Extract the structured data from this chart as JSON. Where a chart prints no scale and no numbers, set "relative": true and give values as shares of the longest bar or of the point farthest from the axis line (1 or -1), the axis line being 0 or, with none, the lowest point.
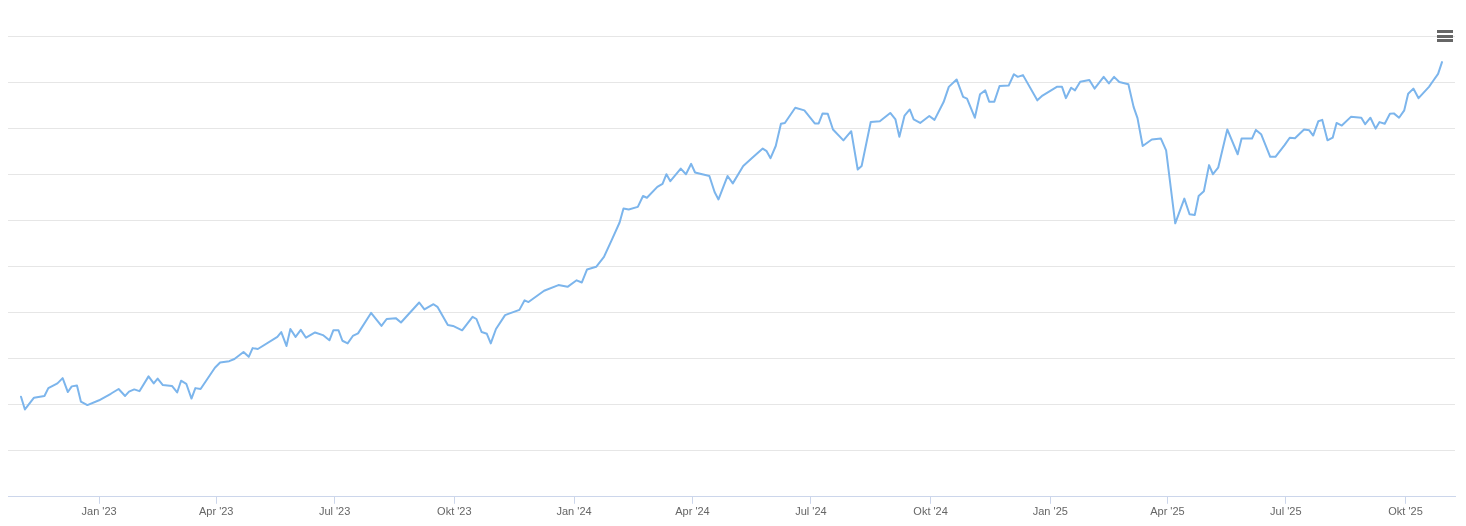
{
  "chart_data": {
    "type": "line",
    "relative": true,
    "grid": "y",
    "marker": "none",
    "line_style": "solid",
    "xlim": [
      "2022-10-23",
      "2025-11-08"
    ],
    "xticks": [
      {
        "value": "2023-01-01",
        "label": "Jan '23"
      },
      {
        "value": "2023-04-01",
        "label": "Apr '23"
      },
      {
        "value": "2023-07-01",
        "label": "Jul '23"
      },
      {
        "value": "2023-10-01",
        "label": "Okt '23"
      },
      {
        "value": "2024-01-01",
        "label": "Jan '24"
      },
      {
        "value": "2024-04-01",
        "label": "Apr '24"
      },
      {
        "value": "2024-07-01",
        "label": "Jul '24"
      },
      {
        "value": "2024-10-01",
        "label": "Okt '24"
      },
      {
        "value": "2025-01-01",
        "label": "Jan '25"
      },
      {
        "value": "2025-04-01",
        "label": "Apr '25"
      },
      {
        "value": "2025-07-01",
        "label": "Jul '25"
      },
      {
        "value": "2025-10-01",
        "label": "Okt '25"
      }
    ],
    "x": [
      "2022-11-02",
      "2022-11-05",
      "2022-11-12",
      "2022-11-20",
      "2022-11-23",
      "2022-11-30",
      "2022-12-04",
      "2022-12-08",
      "2022-12-11",
      "2022-12-15",
      "2022-12-18",
      "2022-12-23",
      "2023-01-01",
      "2023-01-10",
      "2023-01-16",
      "2023-01-21",
      "2023-01-24",
      "2023-01-28",
      "2023-02-01",
      "2023-02-08",
      "2023-02-12",
      "2023-02-15",
      "2023-02-19",
      "2023-02-26",
      "2023-03-02",
      "2023-03-05",
      "2023-03-09",
      "2023-03-13",
      "2023-03-16",
      "2023-03-20",
      "2023-03-31",
      "2023-04-04",
      "2023-04-11",
      "2023-04-15",
      "2023-04-22",
      "2023-04-26",
      "2023-04-29",
      "2023-05-03",
      "2023-05-18",
      "2023-05-21",
      "2023-05-25",
      "2023-05-28",
      "2023-06-01",
      "2023-06-05",
      "2023-06-09",
      "2023-06-16",
      "2023-06-22",
      "2023-06-27",
      "2023-06-30",
      "2023-07-04",
      "2023-07-07",
      "2023-07-11",
      "2023-07-15",
      "2023-07-19",
      "2023-07-29",
      "2023-08-06",
      "2023-08-10",
      "2023-08-17",
      "2023-08-21",
      "2023-08-28",
      "2023-09-04",
      "2023-09-08",
      "2023-09-15",
      "2023-09-18",
      "2023-09-26",
      "2023-09-30",
      "2023-10-07",
      "2023-10-15",
      "2023-10-18",
      "2023-10-22",
      "2023-10-26",
      "2023-10-29",
      "2023-11-02",
      "2023-11-09",
      "2023-11-20",
      "2023-11-24",
      "2023-11-27",
      "2023-12-09",
      "2023-12-20",
      "2023-12-27",
      "2024-01-03",
      "2024-01-07",
      "2024-01-11",
      "2024-01-18",
      "2024-01-24",
      "2024-01-30",
      "2024-02-05",
      "2024-02-08",
      "2024-02-12",
      "2024-02-19",
      "2024-02-23",
      "2024-02-26",
      "2024-03-05",
      "2024-03-09",
      "2024-03-12",
      "2024-03-15",
      "2024-03-23",
      "2024-03-27",
      "2024-03-31",
      "2024-04-03",
      "2024-04-14",
      "2024-04-18",
      "2024-04-21",
      "2024-04-28",
      "2024-05-02",
      "2024-05-10",
      "2024-05-17",
      "2024-05-25",
      "2024-05-28",
      "2024-05-31",
      "2024-06-04",
      "2024-06-08",
      "2024-06-11",
      "2024-06-19",
      "2024-06-26",
      "2024-07-04",
      "2024-07-07",
      "2024-07-10",
      "2024-07-14",
      "2024-07-18",
      "2024-07-26",
      "2024-08-01",
      "2024-08-06",
      "2024-08-09",
      "2024-08-16",
      "2024-08-23",
      "2024-08-31",
      "2024-09-04",
      "2024-09-07",
      "2024-09-11",
      "2024-09-15",
      "2024-09-18",
      "2024-09-23",
      "2024-09-30",
      "2024-10-04",
      "2024-10-11",
      "2024-10-15",
      "2024-10-21",
      "2024-10-26",
      "2024-10-29",
      "2024-11-04",
      "2024-11-08",
      "2024-11-12",
      "2024-11-15",
      "2024-11-19",
      "2024-11-23",
      "2024-11-30",
      "2024-12-04",
      "2024-12-07",
      "2024-12-11",
      "2024-12-22",
      "2024-12-26",
      "2025-01-06",
      "2025-01-10",
      "2025-01-13",
      "2025-01-17",
      "2025-01-20",
      "2025-01-24",
      "2025-01-31",
      "2025-02-04",
      "2025-02-11",
      "2025-02-15",
      "2025-02-19",
      "2025-02-23",
      "2025-03-02",
      "2025-03-06",
      "2025-03-09",
      "2025-03-13",
      "2025-03-20",
      "2025-03-27",
      "2025-03-31",
      "2025-04-07",
      "2025-04-14",
      "2025-04-18",
      "2025-04-22",
      "2025-04-25",
      "2025-04-29",
      "2025-05-03",
      "2025-05-06",
      "2025-05-10",
      "2025-05-17",
      "2025-05-25",
      "2025-05-28",
      "2025-06-05",
      "2025-06-08",
      "2025-06-12",
      "2025-06-19",
      "2025-06-23",
      "2025-06-30",
      "2025-07-04",
      "2025-07-08",
      "2025-07-15",
      "2025-07-19",
      "2025-07-22",
      "2025-07-26",
      "2025-07-29",
      "2025-08-02",
      "2025-08-06",
      "2025-08-09",
      "2025-08-13",
      "2025-08-20",
      "2025-08-28",
      "2025-08-31",
      "2025-09-04",
      "2025-09-08",
      "2025-09-11",
      "2025-09-15",
      "2025-09-19",
      "2025-09-22",
      "2025-09-26",
      "2025-09-30",
      "2025-10-03",
      "2025-10-07",
      "2025-10-11",
      "2025-10-19",
      "2025-10-22",
      "2025-10-26",
      "2025-10-29"
    ],
    "series": [
      {
        "color": "#7cb5ec",
        "values": [
          0.23,
          0.201,
          0.228,
          0.232,
          0.25,
          0.261,
          0.273,
          0.241,
          0.254,
          0.256,
          0.219,
          0.211,
          0.222,
          0.237,
          0.248,
          0.232,
          0.242,
          0.247,
          0.243,
          0.277,
          0.261,
          0.272,
          0.257,
          0.255,
          0.24,
          0.267,
          0.26,
          0.226,
          0.25,
          0.248,
          0.297,
          0.309,
          0.312,
          0.317,
          0.333,
          0.322,
          0.342,
          0.34,
          0.368,
          0.379,
          0.347,
          0.386,
          0.368,
          0.384,
          0.366,
          0.378,
          0.372,
          0.36,
          0.383,
          0.383,
          0.359,
          0.353,
          0.37,
          0.376,
          0.423,
          0.393,
          0.409,
          0.411,
          0.401,
          0.424,
          0.447,
          0.431,
          0.443,
          0.437,
          0.395,
          0.393,
          0.383,
          0.414,
          0.409,
          0.379,
          0.375,
          0.353,
          0.386,
          0.418,
          0.43,
          0.452,
          0.448,
          0.474,
          0.487,
          0.483,
          0.498,
          0.493,
          0.523,
          0.529,
          0.552,
          0.591,
          0.631,
          0.663,
          0.661,
          0.667,
          0.692,
          0.688,
          0.713,
          0.72,
          0.742,
          0.726,
          0.755,
          0.742,
          0.766,
          0.746,
          0.738,
          0.701,
          0.684,
          0.738,
          0.721,
          0.761,
          0.78,
          0.801,
          0.795,
          0.779,
          0.807,
          0.858,
          0.86,
          0.895,
          0.889,
          0.859,
          0.859,
          0.882,
          0.881,
          0.845,
          0.82,
          0.841,
          0.753,
          0.761,
          0.862,
          0.864,
          0.883,
          0.868,
          0.828,
          0.877,
          0.891,
          0.868,
          0.86,
          0.876,
          0.867,
          0.908,
          0.943,
          0.96,
          0.92,
          0.916,
          0.872,
          0.926,
          0.935,
          0.909,
          0.909,
          0.945,
          0.946,
          0.972,
          0.966,
          0.97,
          0.912,
          0.923,
          0.943,
          0.943,
          0.917,
          0.941,
          0.935,
          0.955,
          0.959,
          0.939,
          0.966,
          0.951,
          0.966,
          0.954,
          0.949,
          0.897,
          0.871,
          0.807,
          0.822,
          0.824,
          0.797,
          0.629,
          0.686,
          0.65,
          0.648,
          0.692,
          0.703,
          0.763,
          0.742,
          0.757,
          0.845,
          0.788,
          0.824,
          0.824,
          0.844,
          0.834,
          0.782,
          0.782,
          0.809,
          0.826,
          0.825,
          0.845,
          0.843,
          0.831,
          0.864,
          0.867,
          0.82,
          0.826,
          0.86,
          0.854,
          0.874,
          0.872,
          0.857,
          0.872,
          0.847,
          0.862,
          0.858,
          0.881,
          0.882,
          0.872,
          0.889,
          0.927,
          0.939,
          0.917,
          0.943,
          0.956,
          0.973,
          1.0
        ]
      }
    ]
  }
}
